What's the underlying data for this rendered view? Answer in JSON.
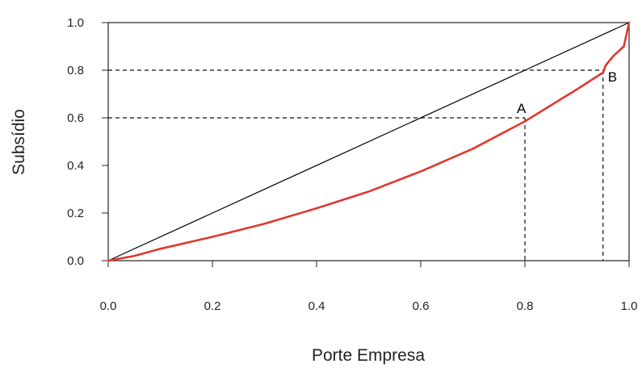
{
  "chart_data": {
    "type": "line",
    "xlabel": "Porte Empresa",
    "ylabel": "Subsídio",
    "xlim": [
      0,
      1
    ],
    "ylim": [
      0,
      1
    ],
    "xticks": [
      "0.0",
      "0.2",
      "0.4",
      "0.6",
      "0.8",
      "1.0"
    ],
    "yticks": [
      "0.0",
      "0.2",
      "0.4",
      "0.6",
      "0.8",
      "1.0"
    ],
    "grid": false,
    "legend": "none",
    "series": [
      {
        "color": "#000000",
        "x": [
          0,
          1
        ],
        "y": [
          0,
          1
        ]
      },
      {
        "color": "#e0382f",
        "x": [
          0,
          0.05,
          0.1,
          0.2,
          0.3,
          0.4,
          0.5,
          0.6,
          0.7,
          0.8,
          0.9,
          0.95,
          0.955,
          0.97,
          0.99,
          1.0
        ],
        "y": [
          0,
          0.02,
          0.05,
          0.1,
          0.155,
          0.22,
          0.29,
          0.375,
          0.47,
          0.585,
          0.72,
          0.79,
          0.82,
          0.86,
          0.9,
          1.0
        ]
      }
    ],
    "annotations": [
      {
        "label": "A",
        "x": 0.8,
        "y": 0.6
      },
      {
        "label": "B",
        "x": 0.95,
        "y": 0.8
      }
    ],
    "reference_lines": [
      {
        "x": 0.8,
        "y": 0.6
      },
      {
        "x": 0.95,
        "y": 0.8
      }
    ]
  }
}
